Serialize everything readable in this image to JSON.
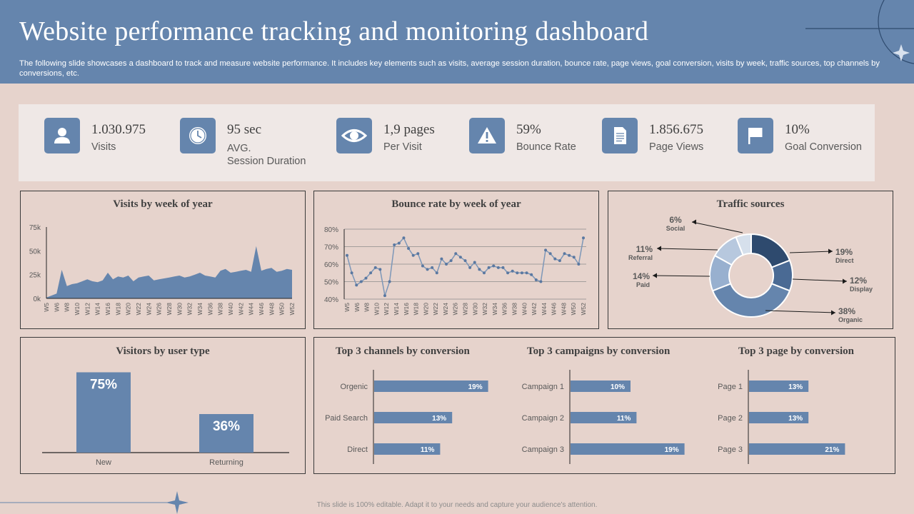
{
  "header": {
    "title": "Website performance tracking and monitoring dashboard",
    "subtitle": "The following slide showcases a dashboard to track and measure website performance. It includes key elements such as visits, average session duration, bounce rate, page views, goal conversion, visits by week, traffic sources, top channels by conversions, etc."
  },
  "kpis": [
    {
      "icon": "user-icon",
      "value": "1.030.975",
      "label": "Visits"
    },
    {
      "icon": "clock-icon",
      "value": "95 sec",
      "label": "AVG.",
      "label2": "Session Duration"
    },
    {
      "icon": "eye-icon",
      "value": "1,9 pages",
      "label": "Per Visit"
    },
    {
      "icon": "warning-icon",
      "value": "59%",
      "label": "Bounce Rate"
    },
    {
      "icon": "document-icon",
      "value": "1.856.675",
      "label": "Page Views"
    },
    {
      "icon": "flag-icon",
      "value": "10%",
      "label": "Goal Conversion"
    }
  ],
  "colors": {
    "accent": "#6585ad",
    "dark_accent": "#2e4a6e",
    "light_accent": "#a9bdd6",
    "background": "#e6d3cc"
  },
  "chart_data": [
    {
      "id": "visits",
      "type": "area",
      "title": "Visits by week of year",
      "ylim": [
        0,
        75000
      ],
      "y_ticks": [
        {
          "value": 0,
          "label": "0k"
        },
        {
          "value": 25000,
          "label": "25k"
        },
        {
          "value": 50000,
          "label": "50k"
        },
        {
          "value": 75000,
          "label": "75k"
        }
      ],
      "x_labels": [
        "W5",
        "W6",
        "W8",
        "W10",
        "W12",
        "W14",
        "W16",
        "W18",
        "W20",
        "W22",
        "W24",
        "W26",
        "W28",
        "W30",
        "W32",
        "W34",
        "W36",
        "W38",
        "W40",
        "W42",
        "W44",
        "W46",
        "W48",
        "W50",
        "W52"
      ],
      "values": [
        1000,
        3000,
        5000,
        30000,
        13000,
        15000,
        16000,
        18000,
        20000,
        18000,
        17000,
        19000,
        27000,
        20000,
        23000,
        22000,
        24000,
        18000,
        22000,
        23000,
        24000,
        19000,
        20000,
        21000,
        22000,
        23000,
        24000,
        22000,
        23000,
        25000,
        27000,
        24000,
        23000,
        22000,
        29000,
        31000,
        27000,
        28000,
        29000,
        30000,
        28000,
        55000,
        29000,
        31000,
        32000,
        28000,
        29000,
        31000,
        30000
      ]
    },
    {
      "id": "bounce",
      "type": "line",
      "title": "Bounce rate by week of year",
      "ylim": [
        40,
        80
      ],
      "y_ticks": [
        {
          "value": 40,
          "label": "40%"
        },
        {
          "value": 50,
          "label": "50%"
        },
        {
          "value": 60,
          "label": "60%"
        },
        {
          "value": 70,
          "label": "70%"
        },
        {
          "value": 80,
          "label": "80%"
        }
      ],
      "x_labels": [
        "W5",
        "W6",
        "W8",
        "W10",
        "W12",
        "W14",
        "W16",
        "W18",
        "W20",
        "W22",
        "W24",
        "W26",
        "W28",
        "W30",
        "W32",
        "W34",
        "W36",
        "W38",
        "W40",
        "W42",
        "W44",
        "W46",
        "W48",
        "W50",
        "W52"
      ],
      "values": [
        65,
        55,
        48,
        50,
        52,
        55,
        58,
        57,
        42,
        50,
        71,
        72,
        75,
        69,
        65,
        66,
        59,
        57,
        58,
        55,
        63,
        60,
        62,
        66,
        64,
        62,
        58,
        61,
        57,
        55,
        58,
        59,
        58,
        58,
        55,
        56,
        55,
        55,
        55,
        54,
        51,
        50,
        68,
        66,
        63,
        62,
        66,
        65,
        64,
        60,
        75
      ]
    },
    {
      "id": "traffic",
      "type": "pie",
      "title": "Traffic sources",
      "slices": [
        {
          "label": "Direct",
          "value": 19,
          "text": "19%",
          "color": "#2e4a6e"
        },
        {
          "label": "Display",
          "value": 12,
          "text": "12%",
          "color": "#4a6a94"
        },
        {
          "label": "Organic",
          "value": 38,
          "text": "38%",
          "color": "#6585ad"
        },
        {
          "label": "Paid",
          "value": 14,
          "text": "14%",
          "color": "#98b0cf"
        },
        {
          "label": "Referral",
          "value": 11,
          "text": "11%",
          "color": "#b7c8de"
        },
        {
          "label": "Social",
          "value": 6,
          "text": "6%",
          "color": "#d6e0ec"
        }
      ]
    },
    {
      "id": "visitors",
      "type": "bar",
      "title": "Visitors by user type",
      "categories": [
        "New",
        "Returning"
      ],
      "values": [
        75,
        36
      ],
      "labels": [
        "75%",
        "36%"
      ]
    },
    {
      "id": "channels",
      "type": "bar",
      "orientation": "horizontal",
      "title": "Top 3 channels by conversion",
      "categories": [
        "Orgenic",
        "Paid Search",
        "Direct"
      ],
      "values": [
        19,
        13,
        11
      ],
      "labels": [
        "19%",
        "13%",
        "11%"
      ]
    },
    {
      "id": "campaigns",
      "type": "bar",
      "orientation": "horizontal",
      "title": "Top 3 campaigns by conversion",
      "categories": [
        "Campaign 1",
        "Campaign 2",
        "Campaign 3"
      ],
      "values": [
        10,
        11,
        19
      ],
      "labels": [
        "10%",
        "11%",
        "19%"
      ]
    },
    {
      "id": "pages",
      "type": "bar",
      "orientation": "horizontal",
      "title": "Top 3 page by conversion",
      "categories": [
        "Page 1",
        "Page 2",
        "Page 3"
      ],
      "values": [
        13,
        13,
        21
      ],
      "labels": [
        "13%",
        "13%",
        "21%"
      ]
    }
  ],
  "footer": "This slide is 100% editable. Adapt it to your needs and capture your audience's attention."
}
